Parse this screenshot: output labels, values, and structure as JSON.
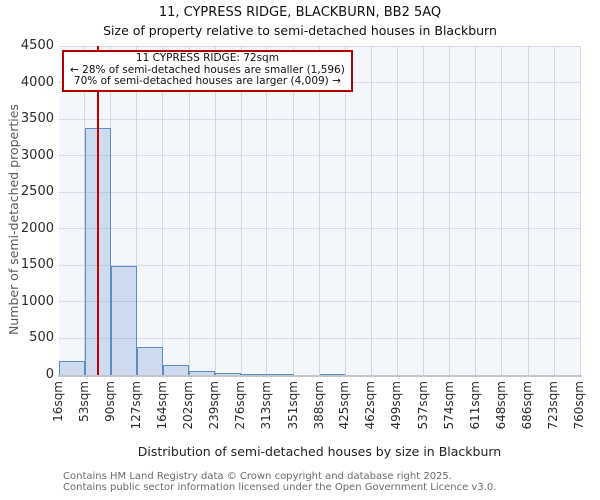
{
  "title": "11, CYPRESS RIDGE, BLACKBURN, BB2 5AQ",
  "subtitle": "Size of property relative to semi-detached houses in Blackburn",
  "annotation": {
    "line1": "11 CYPRESS RIDGE: 72sqm",
    "line2": "← 28% of semi-detached houses are smaller (1,596)",
    "line3": "70% of semi-detached houses are larger (4,009) →"
  },
  "chart_data": {
    "type": "bar",
    "title": "11, CYPRESS RIDGE, BLACKBURN, BB2 5AQ",
    "subtitle": "Size of property relative to semi-detached houses in Blackburn",
    "xlabel": "Distribution of semi-detached houses by size in Blackburn",
    "ylabel": "Number of semi-detached properties",
    "x_tick_labels": [
      "16sqm",
      "53sqm",
      "90sqm",
      "127sqm",
      "164sqm",
      "202sqm",
      "239sqm",
      "276sqm",
      "313sqm",
      "351sqm",
      "388sqm",
      "425sqm",
      "462sqm",
      "499sqm",
      "537sqm",
      "574sqm",
      "611sqm",
      "648sqm",
      "686sqm",
      "723sqm",
      "760sqm"
    ],
    "bin_edges_sqm": [
      16,
      53,
      90,
      127,
      164,
      202,
      239,
      276,
      313,
      351,
      388,
      425,
      462,
      499,
      537,
      574,
      611,
      648,
      686,
      723,
      760
    ],
    "values": [
      190,
      3380,
      1490,
      380,
      140,
      55,
      25,
      12,
      5,
      0,
      8,
      0,
      0,
      0,
      0,
      0,
      0,
      0,
      0,
      0
    ],
    "ylim": [
      0,
      4500
    ],
    "ytick_step": 500,
    "grid": true,
    "legend": "none",
    "marker_value_sqm": 72,
    "colors": {
      "marker": "#c00000",
      "annotation_border": "#b00000",
      "bar_fill": "rgba(95,140,200,0.25)",
      "bar_edge": "#5b8cc8",
      "plot_bg": "#f3f6fb",
      "grid": "#d9dce4"
    }
  },
  "footer": {
    "line1": "Contains HM Land Registry data © Crown copyright and database right 2025.",
    "line2": "Contains public sector information licensed under the Open Government Licence v3.0."
  }
}
